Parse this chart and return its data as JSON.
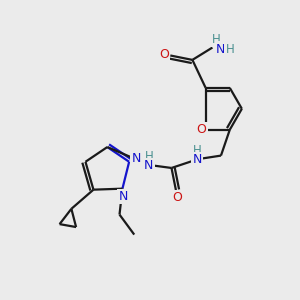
{
  "bg_color": "#ebebeb",
  "bond_color": "#1a1a1a",
  "N_color": "#1414cc",
  "O_color": "#cc1414",
  "NH_color": "#4a9090",
  "font_size": 8.5,
  "bond_width": 1.6,
  "figsize": [
    3.0,
    3.0
  ],
  "dpi": 100,
  "xlim": [
    0,
    10
  ],
  "ylim": [
    0,
    10
  ]
}
